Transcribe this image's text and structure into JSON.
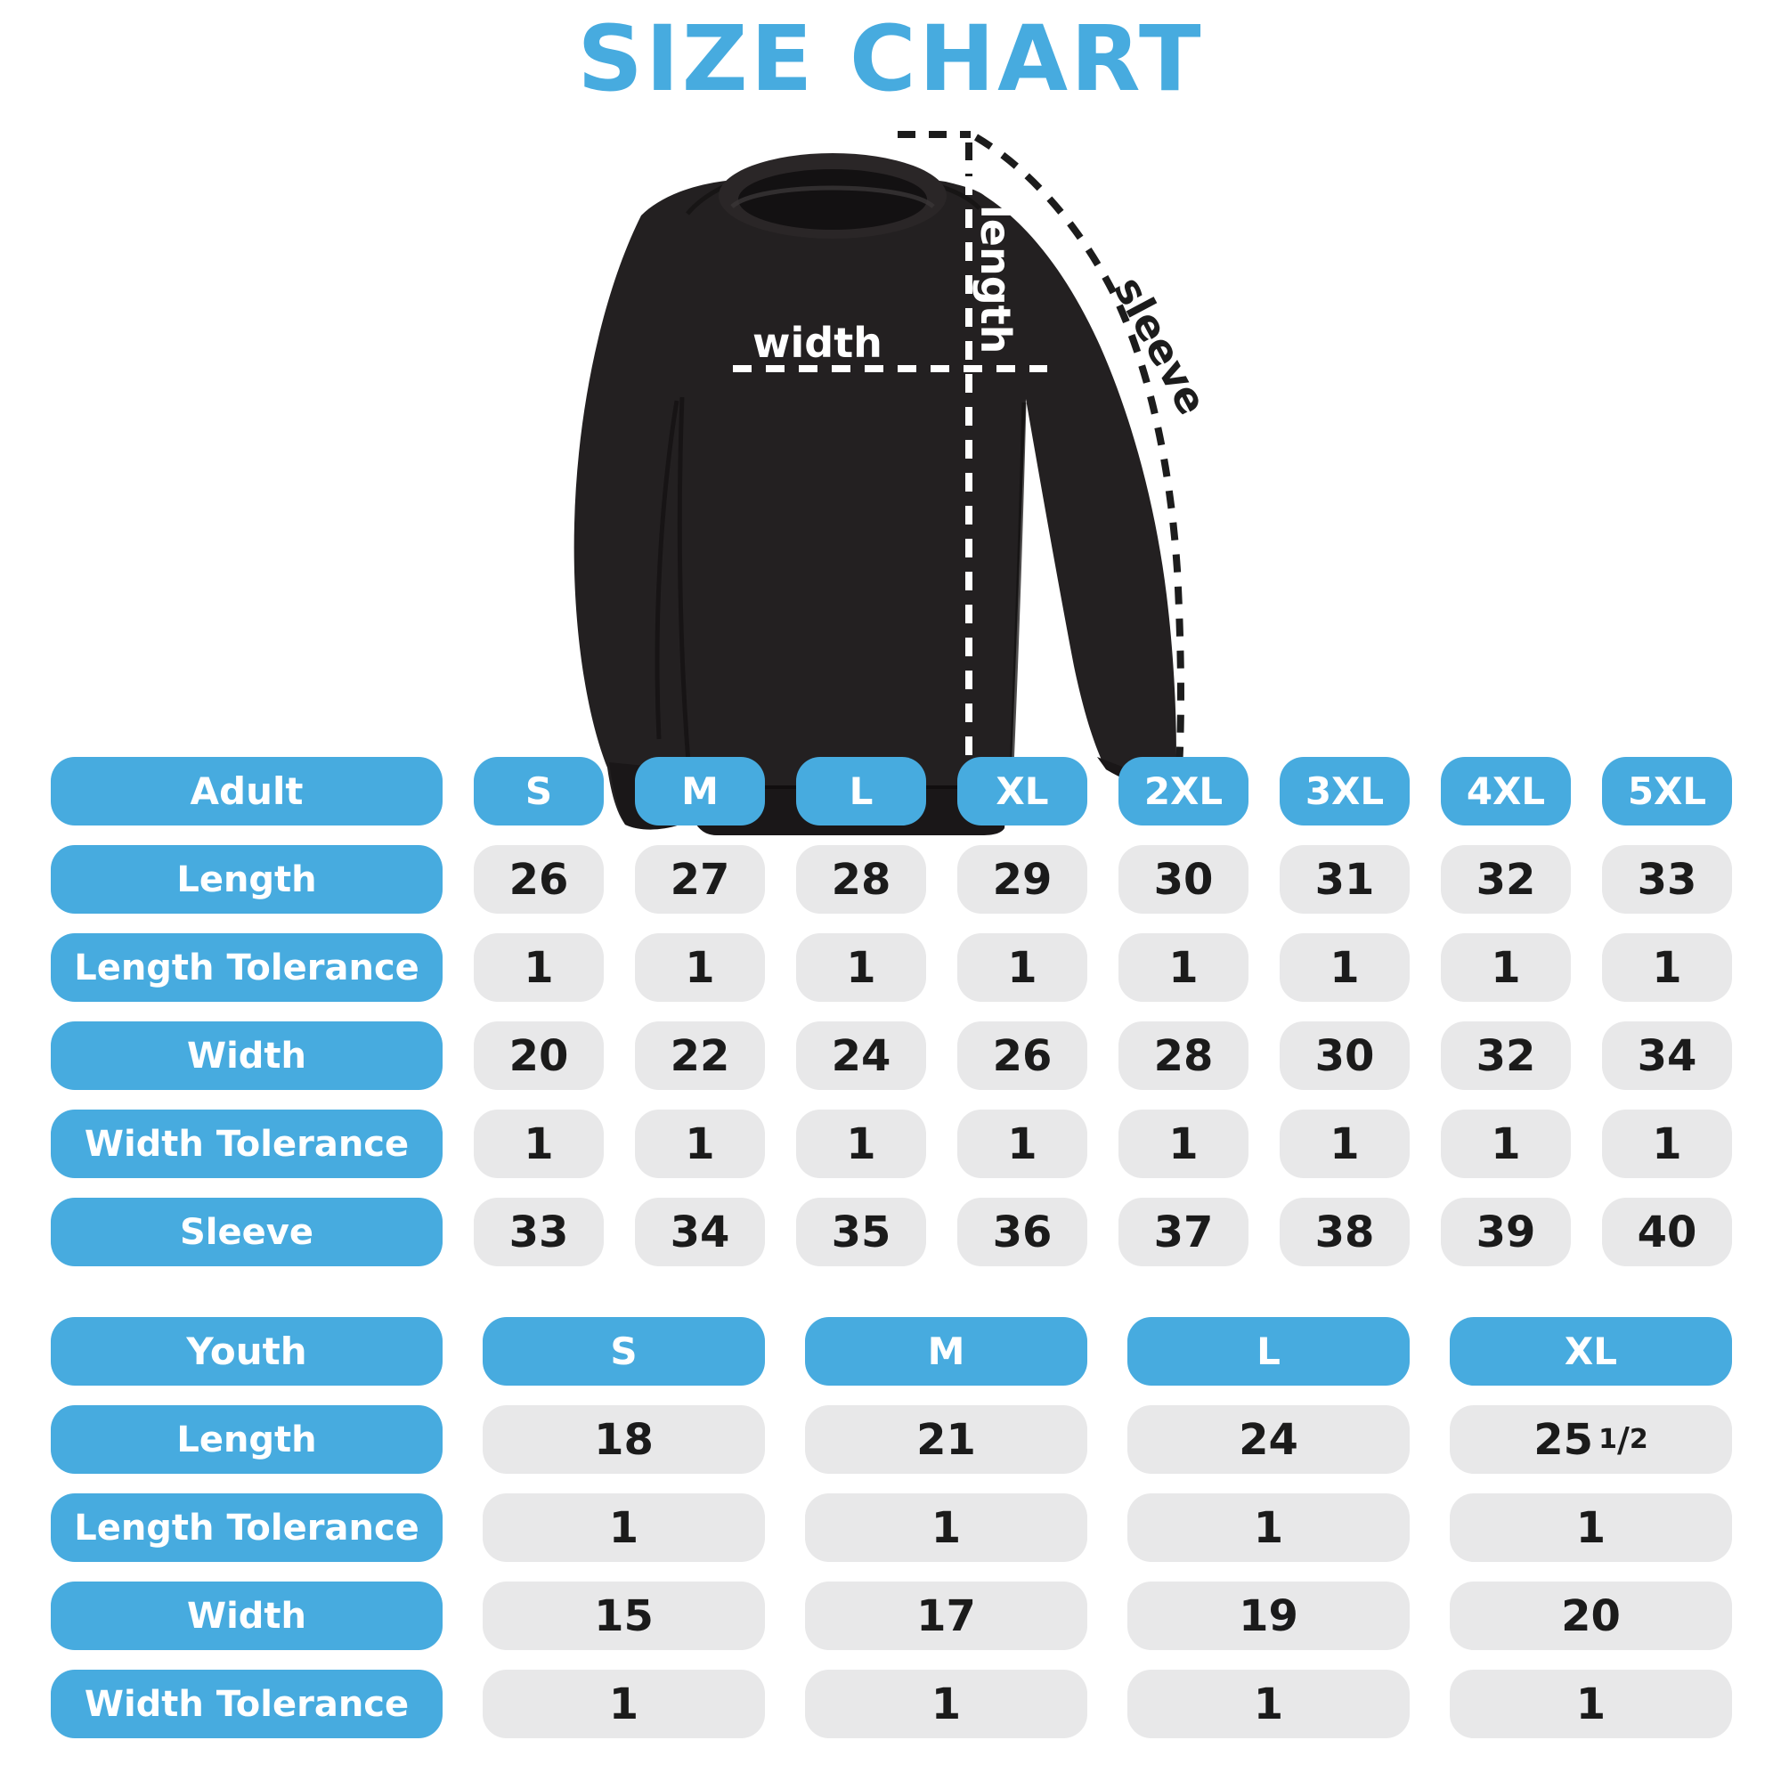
{
  "title": "SIZE CHART",
  "diagram": {
    "garment": "black crewneck sweatshirt",
    "labels": {
      "width": "width",
      "length": "length",
      "sleeve": "sleeve"
    }
  },
  "chart_data": [
    {
      "type": "table",
      "title": "Adult",
      "columns": [
        "Adult",
        "S",
        "M",
        "L",
        "XL",
        "2XL",
        "3XL",
        "4XL",
        "5XL"
      ],
      "rows": [
        [
          "Length",
          "26",
          "27",
          "28",
          "29",
          "30",
          "31",
          "32",
          "33"
        ],
        [
          "Length Tolerance",
          "1",
          "1",
          "1",
          "1",
          "1",
          "1",
          "1",
          "1"
        ],
        [
          "Width",
          "20",
          "22",
          "24",
          "26",
          "28",
          "30",
          "32",
          "34"
        ],
        [
          "Width Tolerance",
          "1",
          "1",
          "1",
          "1",
          "1",
          "1",
          "1",
          "1"
        ],
        [
          "Sleeve",
          "33",
          "34",
          "35",
          "36",
          "37",
          "38",
          "39",
          "40"
        ]
      ]
    },
    {
      "type": "table",
      "title": "Youth",
      "columns": [
        "Youth",
        "S",
        "M",
        "L",
        "XL"
      ],
      "rows": [
        [
          "Length",
          "18",
          "21",
          "24",
          "25 1/2"
        ],
        [
          "Length Tolerance",
          "1",
          "1",
          "1",
          "1"
        ],
        [
          "Width",
          "15",
          "17",
          "19",
          "20"
        ],
        [
          "Width Tolerance",
          "1",
          "1",
          "1",
          "1"
        ]
      ]
    }
  ],
  "colors": {
    "accent_blue": "#47ABDF",
    "cell_gray": "#E8E8E9",
    "value_text": "#1B1B1B",
    "shirt_black": "#232021",
    "label_white": "#FFFFFF",
    "annotation_dark": "#1C1C1C"
  }
}
